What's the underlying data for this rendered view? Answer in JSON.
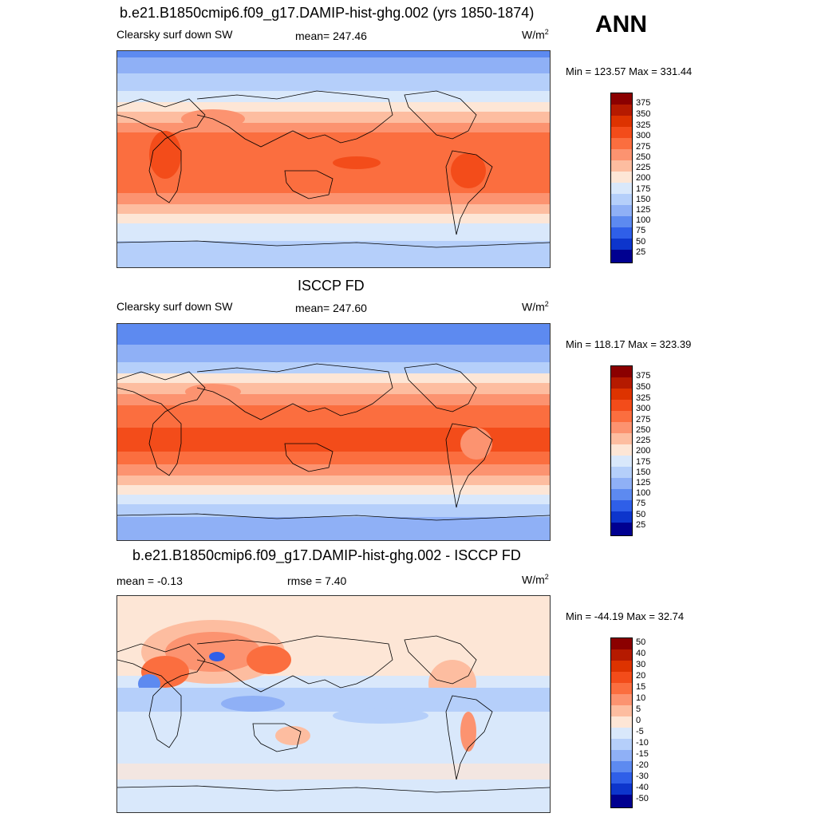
{
  "season": "ANN",
  "panels": [
    {
      "title": "b.e21.B1850cmip6.f09_g17.DAMIP-hist-ghg.002 (yrs 1850-1874)",
      "left_label": "Clearsky surf down SW",
      "center_label": "mean= 247.46",
      "units": "W/m",
      "units_sup": "2",
      "minmax": "Min = 123.57 Max = 331.44",
      "colorbar_levels": [
        "375",
        "350",
        "325",
        "300",
        "275",
        "250",
        "225",
        "200",
        "175",
        "150",
        "125",
        "100",
        "75",
        "50",
        "25"
      ]
    },
    {
      "title": "ISCCP FD",
      "left_label": "Clearsky surf down SW",
      "center_label": "mean= 247.60",
      "units": "W/m",
      "units_sup": "2",
      "minmax": "Min = 118.17 Max = 323.39",
      "colorbar_levels": [
        "375",
        "350",
        "325",
        "300",
        "275",
        "250",
        "225",
        "200",
        "175",
        "150",
        "125",
        "100",
        "75",
        "50",
        "25"
      ]
    },
    {
      "title": "b.e21.B1850cmip6.f09_g17.DAMIP-hist-ghg.002 - ISCCP FD",
      "left_label": "mean =  -0.13",
      "center_label": "rmse =   7.40",
      "units": "W/m",
      "units_sup": "2",
      "minmax": "Min = -44.19 Max =  32.74",
      "colorbar_levels": [
        "50",
        "40",
        "30",
        "20",
        "15",
        "10",
        "5",
        "0",
        "-5",
        "-10",
        "-15",
        "-20",
        "-30",
        "-40",
        "-50"
      ]
    }
  ],
  "colors": {
    "scale": [
      "#8b0000",
      "#b51a00",
      "#dd3300",
      "#f34c1a",
      "#fb6e3f",
      "#fc9370",
      "#fdbda0",
      "#fde6d6",
      "#d9e8fb",
      "#b5cffa",
      "#8fb0f6",
      "#5d8af0",
      "#2f5fe8",
      "#0d35cc",
      "#000090"
    ],
    "land_line": "#000000"
  }
}
